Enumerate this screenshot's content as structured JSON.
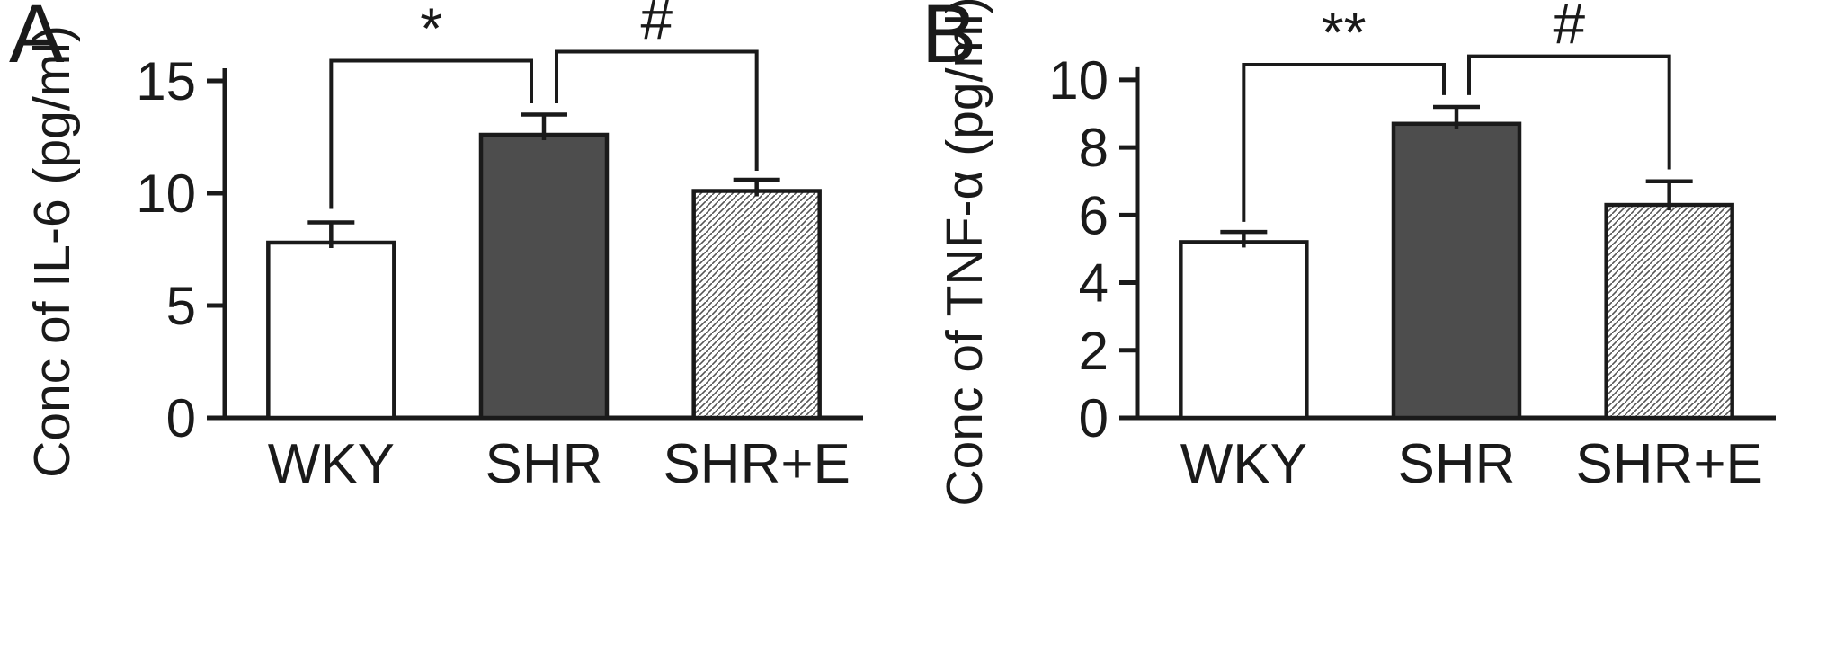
{
  "figure": {
    "background": "#ffffff",
    "axis_color": "#1a1a1a",
    "solid_bar_color": "#4d4d4d"
  },
  "chart_data": [
    {
      "type": "bar",
      "panel_label": "A",
      "ylabel": "Conc of IL-6 (pg/ml)",
      "categories": [
        "WKY",
        "SHR",
        "SHR+E"
      ],
      "values": [
        7.8,
        12.6,
        10.1
      ],
      "errors": [
        0.9,
        0.9,
        0.5
      ],
      "bar_styles": [
        "open",
        "solid",
        "hatched"
      ],
      "yticks": [
        0,
        5,
        10,
        15
      ],
      "ylim": [
        0,
        17
      ],
      "grid": false,
      "legend": "none",
      "annotations": [
        {
          "from": 0,
          "to": 1,
          "label": "*",
          "y_line": 15.9,
          "y_from": 9.3,
          "y_to": 14.0,
          "x_from_offset": 0,
          "x_to_offset": -14
        },
        {
          "from": 1,
          "to": 2,
          "label": "#",
          "y_line": 16.3,
          "y_from": 14.0,
          "y_to": 11.0,
          "x_from_offset": 14,
          "x_to_offset": 0
        }
      ]
    },
    {
      "type": "bar",
      "panel_label": "B",
      "ylabel": "Conc of TNF-α (pg/ml)",
      "categories": [
        "WKY",
        "SHR",
        "SHR+E"
      ],
      "values": [
        5.2,
        8.7,
        6.3
      ],
      "errors": [
        0.3,
        0.5,
        0.7
      ],
      "bar_styles": [
        "open",
        "solid",
        "hatched"
      ],
      "yticks": [
        0,
        2,
        4,
        6,
        8,
        10
      ],
      "ylim": [
        0,
        11.3
      ],
      "grid": false,
      "legend": "none",
      "annotations": [
        {
          "from": 0,
          "to": 1,
          "label": "**",
          "y_line": 10.45,
          "y_from": 5.8,
          "y_to": 9.55,
          "x_from_offset": 0,
          "x_to_offset": -14
        },
        {
          "from": 1,
          "to": 2,
          "label": "#",
          "y_line": 10.7,
          "y_from": 9.55,
          "y_to": 7.35,
          "x_from_offset": 14,
          "x_to_offset": 0
        }
      ]
    }
  ]
}
